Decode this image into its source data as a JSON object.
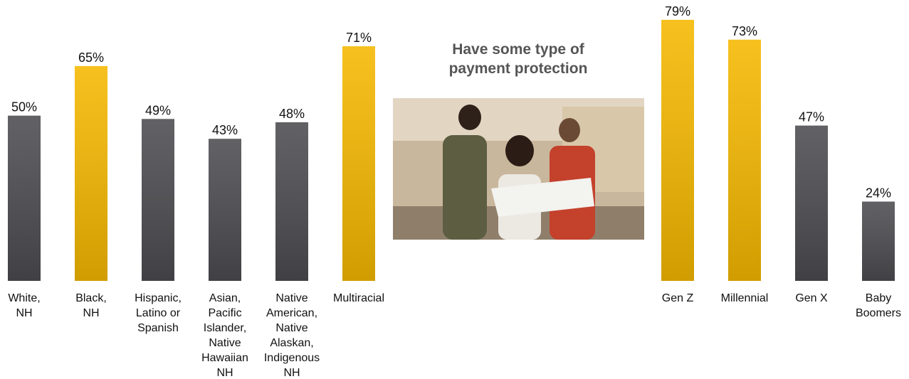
{
  "title": "Have some type of payment protection",
  "chart_data": [
    {
      "type": "bar",
      "categories": [
        "White,\nNH",
        "Black,\nNH",
        "Hispanic,\nLatino or\nSpanish",
        "Asian,\nPacific\nIslander,\nNative\nHawaiian\nNH",
        "Native\nAmerican,\nNative\nAlaskan,\nIndigenous\nNH",
        "Multiracial"
      ],
      "values": [
        50,
        65,
        49,
        43,
        48,
        71
      ],
      "value_labels": [
        "50%",
        "65%",
        "49%",
        "43%",
        "48%",
        "71%"
      ],
      "colors": [
        "#4c4c50",
        "#f5b800",
        "#4c4c50",
        "#4c4c50",
        "#4c4c50",
        "#f5b800"
      ],
      "ylim": [
        0,
        85
      ]
    },
    {
      "type": "bar",
      "categories": [
        "Gen Z",
        "Millennial",
        "Gen X",
        "Baby\nBoomers"
      ],
      "values": [
        79,
        73,
        47,
        24
      ],
      "value_labels": [
        "79%",
        "73%",
        "47%",
        "24%"
      ],
      "colors": [
        "#f5b800",
        "#f5b800",
        "#4c4c50",
        "#4c4c50"
      ],
      "ylim": [
        0,
        85
      ]
    }
  ]
}
